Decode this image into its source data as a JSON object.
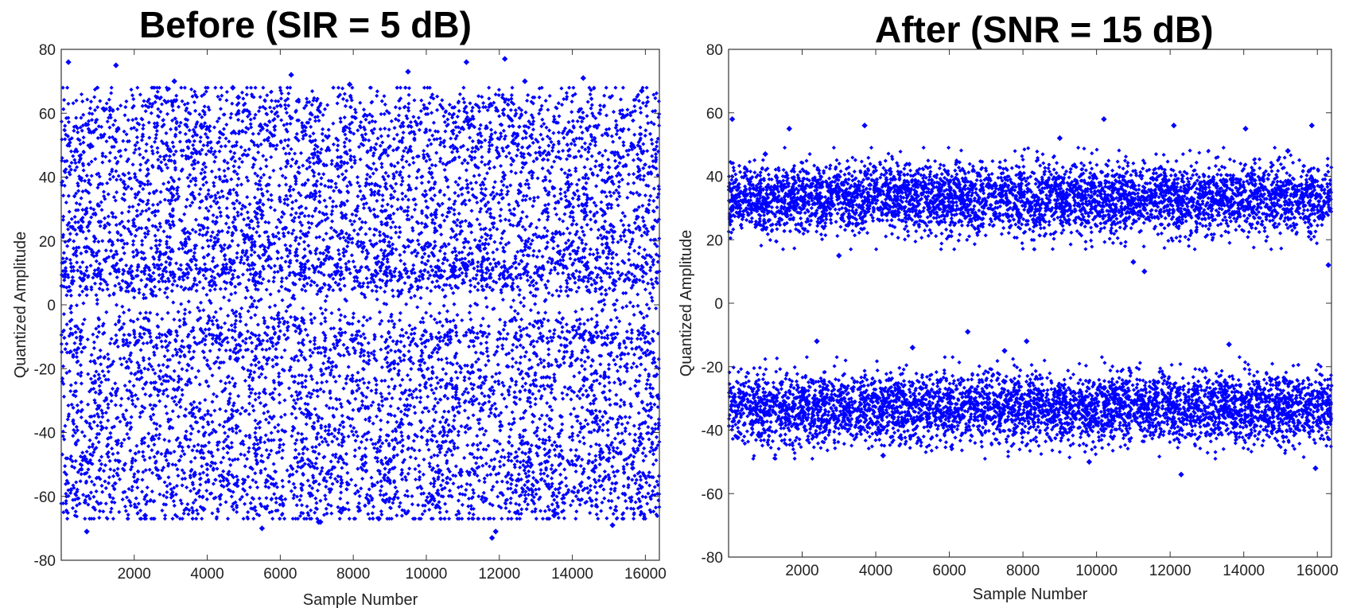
{
  "chart_data": [
    {
      "type": "scatter",
      "title": "Before (SIR = 5 dB)",
      "xlabel": "Sample Number",
      "ylabel": "Quantized Amplitude",
      "xlim": [
        1,
        16384
      ],
      "ylim": [
        -80,
        80
      ],
      "xticks": [
        2000,
        4000,
        6000,
        8000,
        10000,
        12000,
        14000,
        16000
      ],
      "yticks": [
        80,
        60,
        40,
        20,
        0,
        -20,
        -40,
        -60,
        -80
      ],
      "marker_color": "#0000ff",
      "grid": false,
      "series": [
        {
          "distribution": "dense scatter spread across the full range, clusters near ±8, ±30, ±55",
          "x": [
            200,
            700,
            1500,
            2300,
            3100,
            3900,
            4700,
            5500,
            6300,
            7100,
            7900,
            8700,
            9500,
            10300,
            11100,
            11900,
            12700,
            13500,
            14300,
            15100,
            15900,
            10150,
            1550,
            12150,
            600,
            11800,
            7050,
            4850
          ],
          "y": [
            76,
            -71,
            75,
            -66,
            70,
            -64,
            68,
            -70,
            72,
            -68,
            69,
            -67,
            73,
            -63,
            76,
            -71,
            70,
            -66,
            71,
            -69,
            67,
            -60,
            55,
            77,
            8,
            -73,
            -68,
            65
          ]
        }
      ]
    },
    {
      "type": "scatter",
      "title": "After (SNR = 15 dB)",
      "xlabel": "Sample Number",
      "ylabel": "Quantized Amplitude",
      "xlim": [
        1,
        16384
      ],
      "ylim": [
        -80,
        80
      ],
      "xticks": [
        2000,
        4000,
        6000,
        8000,
        10000,
        12000,
        14000,
        16000
      ],
      "yticks": [
        80,
        60,
        40,
        20,
        0,
        -20,
        -40,
        -60,
        -80
      ],
      "marker_color": "#0000ff",
      "grid": false,
      "series": [
        {
          "distribution": "two bands centred near +33 and -33, spread about ±10",
          "x": [
            100,
            1650,
            3700,
            10200,
            11300,
            12100,
            14050,
            15850,
            16300,
            4200,
            6500,
            8100,
            9800,
            2400,
            12300,
            5000,
            7500,
            13600,
            15950,
            1000,
            3000,
            9000,
            11000,
            15200
          ],
          "y": [
            58,
            55,
            56,
            58,
            10,
            56,
            55,
            56,
            12,
            -48,
            -9,
            -12,
            -50,
            -12,
            -54,
            -14,
            -15,
            -13,
            -52,
            47,
            15,
            52,
            13,
            48
          ]
        }
      ]
    }
  ]
}
